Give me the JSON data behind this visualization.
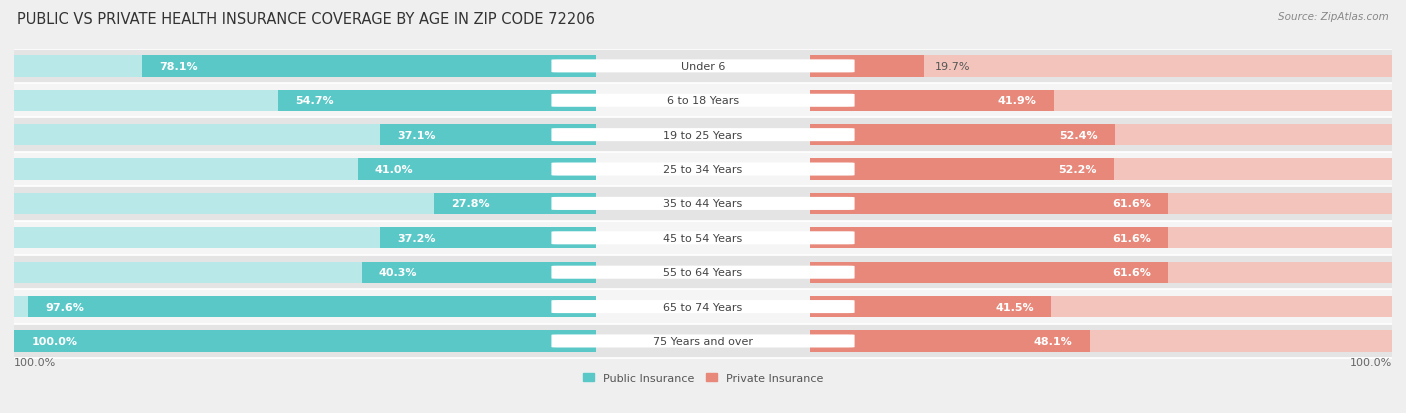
{
  "title": "PUBLIC VS PRIVATE HEALTH INSURANCE COVERAGE BY AGE IN ZIP CODE 72206",
  "source": "Source: ZipAtlas.com",
  "categories": [
    "Under 6",
    "6 to 18 Years",
    "19 to 25 Years",
    "25 to 34 Years",
    "35 to 44 Years",
    "45 to 54 Years",
    "55 to 64 Years",
    "65 to 74 Years",
    "75 Years and over"
  ],
  "public_values": [
    78.1,
    54.7,
    37.1,
    41.0,
    27.8,
    37.2,
    40.3,
    97.6,
    100.0
  ],
  "private_values": [
    19.7,
    41.9,
    52.4,
    52.2,
    61.6,
    61.6,
    61.6,
    41.5,
    48.1
  ],
  "public_color": "#5BC8C8",
  "private_color": "#E8887A",
  "public_track_color": "#B8E8E8",
  "private_track_color": "#F2C4BC",
  "bg_color": "#EFEFEF",
  "row_color_even": "#E4E4E4",
  "row_color_odd": "#F5F5F5",
  "separator_color": "#FFFFFF",
  "max_value": 100.0,
  "bar_height": 0.62,
  "title_fontsize": 10.5,
  "label_fontsize": 8,
  "category_fontsize": 8,
  "source_fontsize": 7.5
}
